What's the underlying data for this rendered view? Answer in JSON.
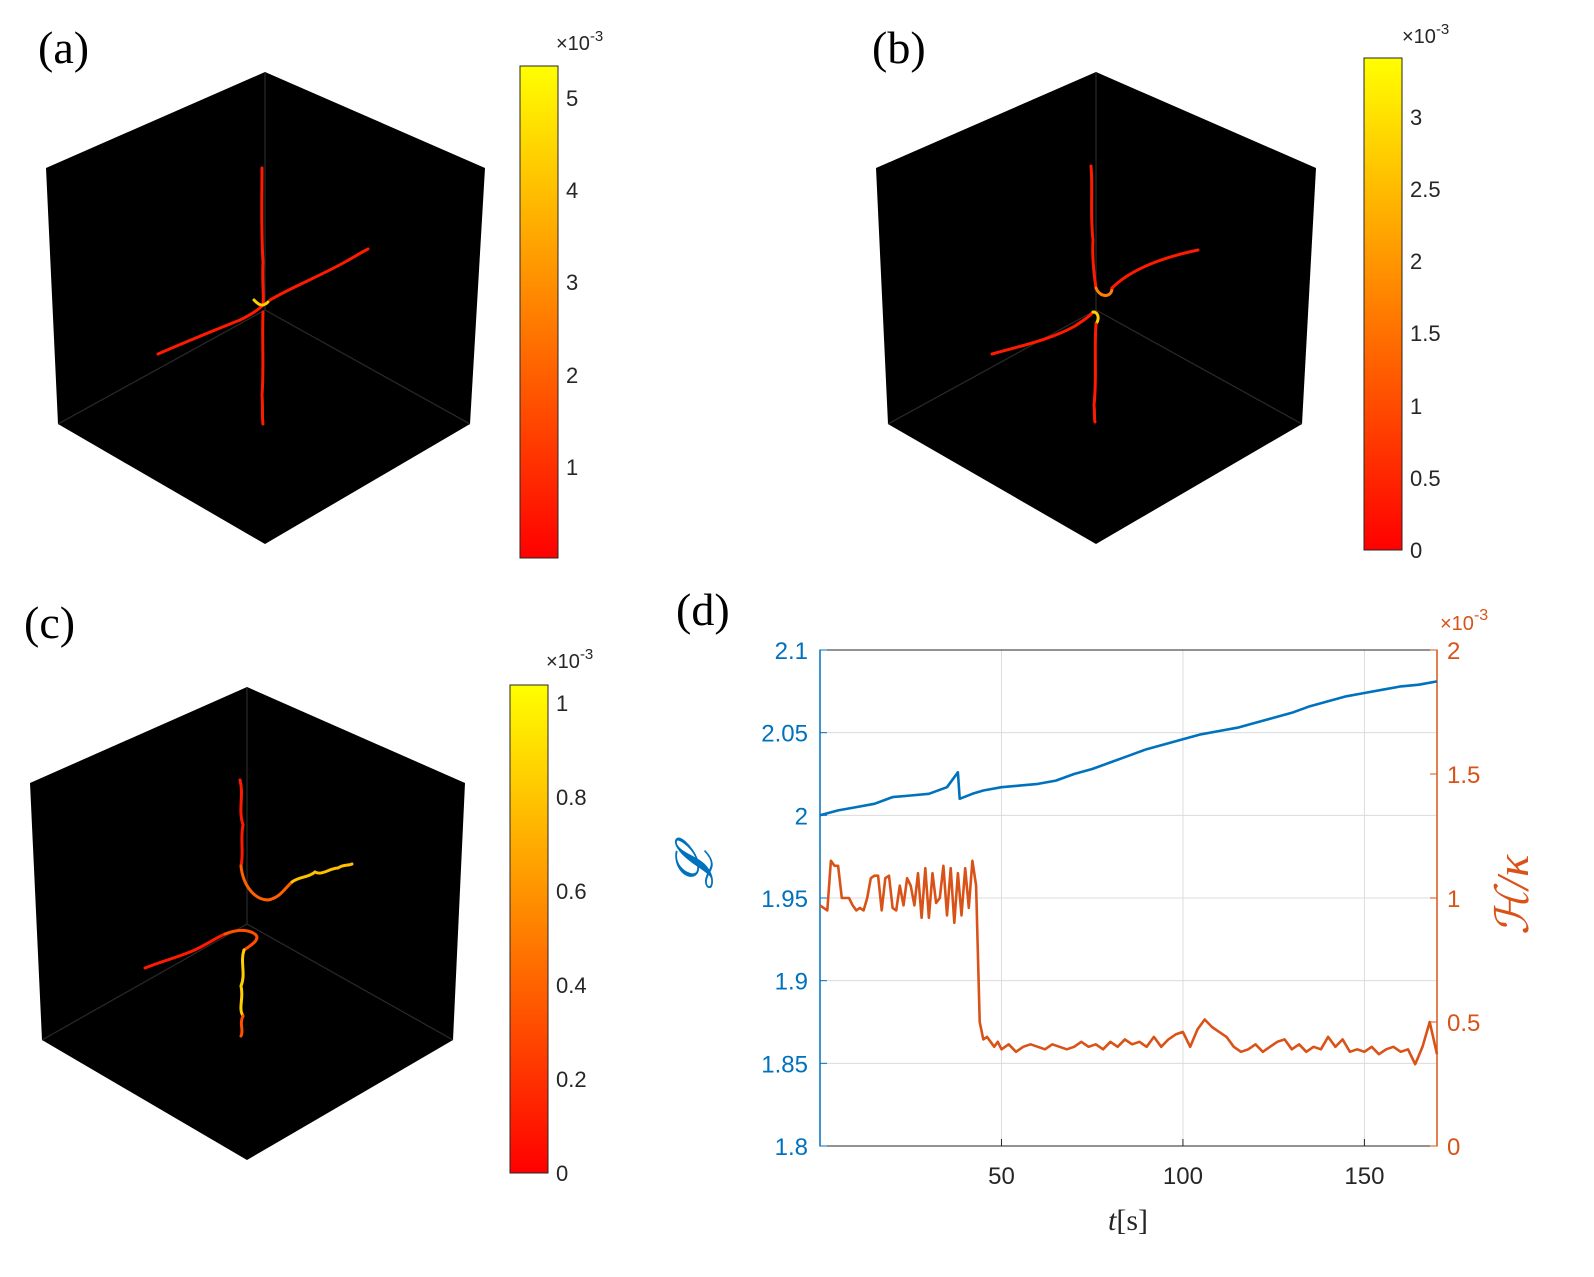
{
  "colors": {
    "left_axis": "#0072BD",
    "right_axis": "#D95319",
    "cube_face": "#000000",
    "axis_grey": "#262626"
  },
  "chart_data": [
    {
      "id": "a",
      "type": "3d-vortex-render",
      "panel_label": "(a)",
      "colorbar": {
        "ticks": [
          "1",
          "2",
          "3",
          "4",
          "5"
        ],
        "min": 0.0,
        "max": 5.3,
        "exponent": "×10",
        "exponent_power": "-3"
      }
    },
    {
      "id": "b",
      "type": "3d-vortex-render",
      "panel_label": "(b)",
      "colorbar": {
        "ticks": [
          "0",
          "0.5",
          "1",
          "1.5",
          "2",
          "2.5",
          "3"
        ],
        "min": 0.0,
        "max": 3.4,
        "exponent": "×10",
        "exponent_power": "-3"
      }
    },
    {
      "id": "c",
      "type": "3d-vortex-render",
      "panel_label": "(c)",
      "colorbar": {
        "ticks": [
          "0",
          "0.2",
          "0.4",
          "0.6",
          "0.8",
          "1"
        ],
        "min": 0.0,
        "max": 1.04,
        "exponent": "×10",
        "exponent_power": "-3"
      }
    },
    {
      "id": "d",
      "type": "line",
      "panel_label": "(d)",
      "xlabel": "t",
      "xlabel_unit": "[s]",
      "xlim": [
        0,
        170
      ],
      "xticks": [
        50,
        100,
        150
      ],
      "ylabel_left": "𝓛",
      "ylim_left": [
        1.8,
        2.1
      ],
      "yticks_left": [
        "1.8",
        "1.85",
        "1.9",
        "1.95",
        "2",
        "2.05",
        "2.1"
      ],
      "ylabel_right": "ℋ/κ",
      "ylim_right": [
        0,
        2
      ],
      "yticks_right": [
        "0",
        "0.5",
        "1",
        "1.5",
        "2"
      ],
      "right_exponent": "×10",
      "right_exponent_power": "-3",
      "series": [
        {
          "name": "L",
          "axis": "left",
          "color": "#0072BD",
          "x": [
            0,
            5,
            10,
            15,
            20,
            25,
            30,
            35,
            38,
            38.5,
            42,
            45,
            50,
            55,
            60,
            65,
            70,
            75,
            80,
            85,
            90,
            95,
            100,
            105,
            110,
            115,
            120,
            125,
            130,
            135,
            140,
            145,
            150,
            155,
            160,
            165,
            170
          ],
          "values": [
            2.0,
            2.003,
            2.005,
            2.007,
            2.011,
            2.012,
            2.013,
            2.017,
            2.026,
            2.01,
            2.013,
            2.015,
            2.017,
            2.018,
            2.019,
            2.021,
            2.025,
            2.028,
            2.032,
            2.036,
            2.04,
            2.043,
            2.046,
            2.049,
            2.051,
            2.053,
            2.056,
            2.059,
            2.062,
            2.066,
            2.069,
            2.072,
            2.074,
            2.076,
            2.078,
            2.079,
            2.081
          ]
        },
        {
          "name": "H/kappa",
          "axis": "right",
          "color": "#D95319",
          "x": [
            0,
            2,
            3,
            4,
            5,
            6,
            7,
            8,
            9,
            10,
            11,
            12,
            13,
            14,
            15,
            16,
            17,
            18,
            19,
            20,
            21,
            22,
            23,
            24,
            25,
            26,
            27,
            28,
            29,
            30,
            31,
            32,
            33,
            34,
            35,
            36,
            37,
            38,
            39,
            40,
            41,
            42,
            43,
            44,
            45,
            46,
            47,
            48,
            49,
            50,
            52,
            54,
            56,
            58,
            60,
            62,
            64,
            66,
            68,
            70,
            72,
            74,
            76,
            78,
            80,
            82,
            84,
            86,
            88,
            90,
            92,
            94,
            96,
            98,
            100,
            102,
            104,
            106,
            108,
            110,
            112,
            114,
            116,
            118,
            120,
            122,
            124,
            126,
            128,
            130,
            132,
            134,
            136,
            138,
            140,
            142,
            144,
            146,
            148,
            150,
            152,
            154,
            156,
            158,
            160,
            162,
            164,
            166,
            168,
            170
          ],
          "values": [
            0.97,
            0.95,
            1.15,
            1.13,
            1.13,
            1.0,
            1.0,
            1.0,
            0.97,
            0.95,
            0.96,
            0.95,
            1.0,
            1.08,
            1.09,
            1.09,
            0.95,
            1.08,
            1.09,
            0.96,
            0.95,
            1.05,
            0.97,
            1.08,
            1.05,
            0.97,
            1.1,
            0.92,
            1.12,
            0.92,
            1.1,
            0.98,
            1.0,
            1.13,
            0.93,
            1.12,
            0.9,
            1.1,
            0.93,
            1.12,
            0.96,
            1.15,
            1.05,
            0.5,
            0.43,
            0.44,
            0.42,
            0.4,
            0.42,
            0.39,
            0.41,
            0.38,
            0.4,
            0.41,
            0.4,
            0.39,
            0.41,
            0.4,
            0.39,
            0.4,
            0.42,
            0.4,
            0.41,
            0.39,
            0.42,
            0.4,
            0.43,
            0.41,
            0.42,
            0.4,
            0.44,
            0.4,
            0.43,
            0.45,
            0.46,
            0.4,
            0.47,
            0.51,
            0.48,
            0.46,
            0.44,
            0.4,
            0.38,
            0.39,
            0.41,
            0.38,
            0.4,
            0.42,
            0.43,
            0.39,
            0.41,
            0.38,
            0.4,
            0.39,
            0.44,
            0.4,
            0.43,
            0.38,
            0.39,
            0.38,
            0.4,
            0.37,
            0.39,
            0.4,
            0.38,
            0.39,
            0.33,
            0.4,
            0.5,
            0.37
          ]
        }
      ]
    }
  ]
}
